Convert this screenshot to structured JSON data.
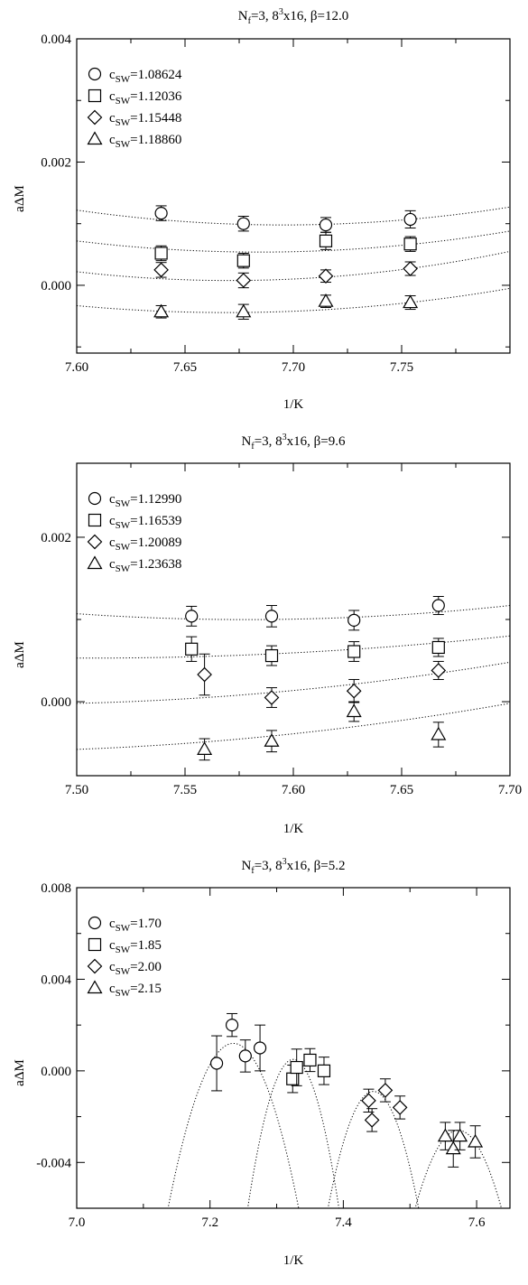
{
  "chart_data": [
    {
      "type": "scatter",
      "title_parts": {
        "n": "N",
        "nsub": "f",
        "eq": "=3,  8",
        "sup": "3",
        "rest": "x16,  β=12.0"
      },
      "xlabel": "1/K",
      "ylabel": "aΔM",
      "xlim": [
        7.6,
        7.8
      ],
      "ylim": [
        -0.0011,
        0.004
      ],
      "xticks": [
        7.6,
        7.65,
        7.7,
        7.75
      ],
      "xtick_labels": [
        "7.60",
        "7.65",
        "7.70",
        "7.75"
      ],
      "yticks": [
        0.0,
        0.002,
        0.004
      ],
      "ytick_labels": [
        "0.000",
        "0.002",
        "0.004"
      ],
      "legend_position": "top-left",
      "series": [
        {
          "name": "c_SW=1.08624",
          "legend_sub": "SW",
          "legend_value": "=1.08624",
          "marker": "circle",
          "x": [
            7.639,
            7.677,
            7.715,
            7.754
          ],
          "y": [
            0.00117,
            0.001,
            0.00098,
            0.00107
          ],
          "err": [
            0.00012,
            0.00012,
            0.00012,
            0.00014
          ],
          "fit": {
            "x": [
              7.6,
              7.69,
              7.8
            ],
            "y": [
              0.00122,
              0.00098,
              0.00127
            ]
          }
        },
        {
          "name": "c_SW=1.12036",
          "legend_sub": "SW",
          "legend_value": "=1.12036",
          "marker": "square",
          "x": [
            7.639,
            7.677,
            7.715,
            7.754
          ],
          "y": [
            0.00052,
            0.0004,
            0.00072,
            0.00067
          ],
          "err": [
            0.00012,
            0.00012,
            0.00014,
            0.00012
          ],
          "fit": {
            "x": [
              7.6,
              7.69,
              7.8
            ],
            "y": [
              0.00072,
              0.00054,
              0.00088
            ]
          }
        },
        {
          "name": "c_SW=1.15448",
          "legend_sub": "SW",
          "legend_value": "=1.15448",
          "marker": "diamond",
          "x": [
            7.639,
            7.677,
            7.715,
            7.754
          ],
          "y": [
            0.00025,
            8e-05,
            0.00015,
            0.00027
          ],
          "err": [
            0.00012,
            0.00012,
            0.0001,
            0.00011
          ],
          "fit": {
            "x": [
              7.6,
              7.68,
              7.8
            ],
            "y": [
              0.00022,
              8e-05,
              0.00055
            ]
          }
        },
        {
          "name": "c_SW=1.18860",
          "legend_sub": "SW",
          "legend_value": "=1.18860",
          "marker": "triangle",
          "x": [
            7.639,
            7.677,
            7.715,
            7.754
          ],
          "y": [
            -0.00043,
            -0.00043,
            -0.00026,
            -0.00028
          ],
          "err": [
            0.0001,
            0.00012,
            0.0001,
            0.00011
          ],
          "fit": {
            "x": [
              7.6,
              7.68,
              7.8
            ],
            "y": [
              -0.00033,
              -0.00044,
              -5e-05
            ]
          }
        }
      ]
    },
    {
      "type": "scatter",
      "title_parts": {
        "n": "N",
        "nsub": "f",
        "eq": "=3,  8",
        "sup": "3",
        "rest": "x16,  β=9.6"
      },
      "xlabel": "1/K",
      "ylabel": "aΔM",
      "xlim": [
        7.5,
        7.7
      ],
      "ylim": [
        -0.0009,
        0.0029
      ],
      "xticks": [
        7.5,
        7.55,
        7.6,
        7.65,
        7.7
      ],
      "xtick_labels": [
        "7.50",
        "7.55",
        "7.60",
        "7.65",
        "7.70"
      ],
      "yticks": [
        0.0,
        0.002
      ],
      "ytick_labels": [
        "0.000",
        "0.002"
      ],
      "legend_position": "top-left",
      "series": [
        {
          "name": "c_SW=1.12990",
          "legend_sub": "SW",
          "legend_value": "=1.12990",
          "marker": "circle",
          "x": [
            7.553,
            7.59,
            7.628,
            7.667
          ],
          "y": [
            0.00104,
            0.00104,
            0.00099,
            0.00117
          ],
          "err": [
            0.00012,
            0.00013,
            0.00012,
            0.00011
          ],
          "fit": {
            "x": [
              7.5,
              7.59,
              7.7
            ],
            "y": [
              0.00107,
              0.001,
              0.00117
            ]
          }
        },
        {
          "name": "c_SW=1.16539",
          "legend_sub": "SW",
          "legend_value": "=1.16539",
          "marker": "square",
          "x": [
            7.553,
            7.59,
            7.628,
            7.667
          ],
          "y": [
            0.00064,
            0.00056,
            0.00061,
            0.00066
          ],
          "err": [
            0.00015,
            0.00012,
            0.00012,
            0.00011
          ],
          "fit": {
            "x": [
              7.5,
              7.58,
              7.7
            ],
            "y": [
              0.00053,
              0.00057,
              0.0008
            ]
          }
        },
        {
          "name": "c_SW=1.20089",
          "legend_sub": "SW",
          "legend_value": "=1.20089",
          "marker": "diamond",
          "x": [
            7.559,
            7.59,
            7.628,
            7.667
          ],
          "y": [
            0.00033,
            5e-05,
            0.00013,
            0.00038
          ],
          "err": [
            0.00025,
            0.00012,
            0.00014,
            0.00011
          ],
          "fit": {
            "x": [
              7.5,
              7.58,
              7.7
            ],
            "y": [
              -2e-05,
              9e-05,
              0.00048
            ]
          }
        },
        {
          "name": "c_SW=1.23638",
          "legend_sub": "SW",
          "legend_value": "=1.23638",
          "marker": "triangle",
          "x": [
            7.559,
            7.59,
            7.628,
            7.667
          ],
          "y": [
            -0.00058,
            -0.00048,
            -0.00012,
            -0.0004
          ],
          "err": [
            0.00013,
            0.00013,
            0.00012,
            0.00015
          ],
          "fit": {
            "x": [
              7.5,
              7.6,
              7.7
            ],
            "y": [
              -0.00058,
              -0.00039,
              -2e-05
            ]
          }
        }
      ]
    },
    {
      "type": "scatter",
      "title_parts": {
        "n": "N",
        "nsub": "f",
        "eq": "=3,  8",
        "sup": "3",
        "rest": "x16,  β=5.2"
      },
      "xlabel": "1/K",
      "ylabel": "aΔM",
      "xlim": [
        7.0,
        7.65
      ],
      "ylim": [
        -0.006,
        0.008
      ],
      "xticks": [
        7.0,
        7.2,
        7.4,
        7.6
      ],
      "xtick_labels": [
        "7.0",
        "7.2",
        "7.4",
        "7.6"
      ],
      "yticks": [
        -0.004,
        0.0,
        0.004,
        0.008
      ],
      "ytick_labels": [
        "-0.004",
        "0.000",
        "0.004",
        "0.008"
      ],
      "legend_position": "top-left",
      "series": [
        {
          "name": "c_SW=1.70",
          "legend_sub": "SW",
          "legend_value": "=1.70",
          "marker": "circle",
          "x": [
            7.21,
            7.233,
            7.253,
            7.275
          ],
          "y": [
            0.00033,
            0.002,
            0.00065,
            0.001
          ],
          "err": [
            0.0012,
            0.0005,
            0.0007,
            0.001
          ],
          "fit": {
            "x": [
              7.135,
              7.235,
              7.335
            ],
            "y": [
              -0.0063,
              0.0012,
              -0.0063
            ]
          }
        },
        {
          "name": "c_SW=1.85",
          "legend_sub": "SW",
          "legend_value": "=1.85",
          "marker": "square",
          "x": [
            7.324,
            7.33,
            7.35,
            7.371
          ],
          "y": [
            -0.00035,
            0.00015,
            0.00047,
            0.0
          ],
          "err": [
            0.0006,
            0.0008,
            0.0005,
            0.0006
          ],
          "fit": {
            "x": [
              7.255,
              7.325,
              7.395
            ],
            "y": [
              -0.0063,
              0.0005,
              -0.0063
            ]
          }
        },
        {
          "name": "c_SW=2.00",
          "legend_sub": "SW",
          "legend_value": "=2.00",
          "marker": "diamond",
          "x": [
            7.438,
            7.443,
            7.463,
            7.485
          ],
          "y": [
            -0.0013,
            -0.00215,
            -0.00085,
            -0.0016
          ],
          "err": [
            0.0005,
            0.0005,
            0.0005,
            0.0005
          ],
          "fit": {
            "x": [
              7.375,
              7.445,
              7.515
            ],
            "y": [
              -0.0063,
              -0.0009,
              -0.0063
            ]
          }
        },
        {
          "name": "c_SW=2.15",
          "legend_sub": "SW",
          "legend_value": "=2.15",
          "marker": "triangle",
          "x": [
            7.553,
            7.565,
            7.575,
            7.598
          ],
          "y": [
            -0.00285,
            -0.0034,
            -0.00285,
            -0.0031
          ],
          "err": [
            0.0006,
            0.0008,
            0.0006,
            0.0007
          ],
          "fit": {
            "x": [
              7.505,
              7.57,
              7.64
            ],
            "y": [
              -0.0063,
              -0.0026,
              -0.0063
            ]
          }
        }
      ]
    }
  ]
}
